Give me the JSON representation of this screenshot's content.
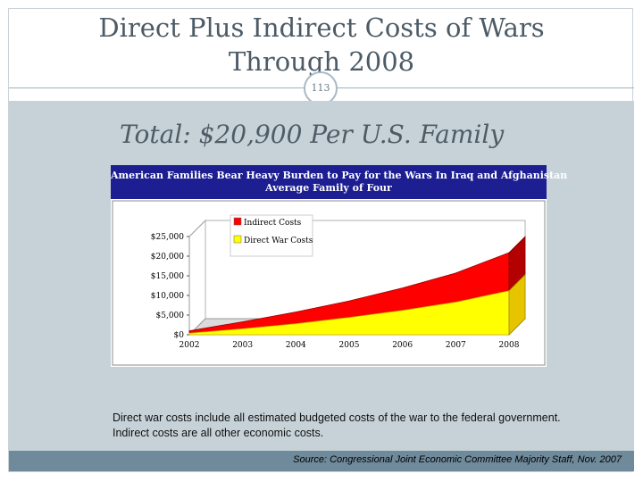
{
  "slide": {
    "title_line1": "Direct Plus Indirect Costs of Wars",
    "title_line2": "Through 2008",
    "page_number": "113",
    "subtitle": "Total: $20,900 Per U.S. Family",
    "caption": "Direct war costs include all estimated budgeted costs of the war to the federal government.  Indirect costs are all other economic costs.",
    "source": "Source: Congressional Joint Economic Committee Majority Staff, Nov. 2007"
  },
  "chart_data": {
    "type": "area",
    "stacked": true,
    "title_line1": "American Families Bear Heavy Burden to Pay for the Wars In Iraq and Afghanistan",
    "title_line2": "Average Family of Four",
    "x": [
      "2002",
      "2003",
      "2004",
      "2005",
      "2006",
      "2007",
      "2008"
    ],
    "y_ticks": [
      "$0",
      "$5,000",
      "$10,000",
      "$15,000",
      "$20,000",
      "$25,000"
    ],
    "ylim": [
      0,
      25000
    ],
    "series": [
      {
        "name": "Direct War Costs",
        "values": [
          400,
          1500,
          2800,
          4400,
          6200,
          8300,
          11200
        ],
        "color": "#ffff00"
      },
      {
        "name": "Indirect Costs",
        "values": [
          600,
          1800,
          3000,
          4200,
          5700,
          7400,
          9700
        ],
        "color": "#ff0000"
      }
    ],
    "legend_position": "top-left",
    "header_color": "#1c1e92"
  }
}
